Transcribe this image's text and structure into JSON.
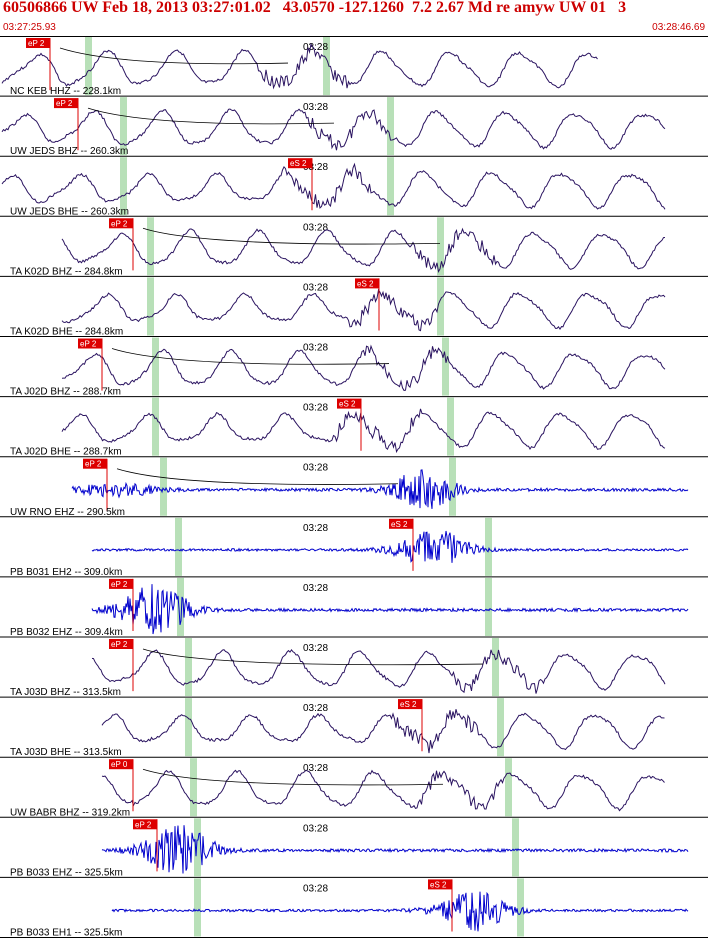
{
  "header": {
    "title": "60506866 UW Feb 18, 2013 03:27:01.02   43.0570 -127.1260  7.2 2.67 Md re amyw UW 01   3",
    "start_time": "03:27:25.93",
    "end_time": "03:28:46.69"
  },
  "minute_label": "03:28",
  "colors": {
    "header_text": "#cc0000",
    "pick_flag": "#dd0000",
    "window_band": "#b8e0b8",
    "trace_long_period": "#2a1360",
    "trace_short_period": "#0000cc",
    "divider": "#000000"
  },
  "traces": [
    {
      "label": "NC KEB HHZ -- 228.1km",
      "pick": "eP 2",
      "type": "lp",
      "seed": 1
    },
    {
      "label": "UW JEDS BHZ -- 260.3km",
      "pick": "eP 2",
      "type": "lp",
      "seed": 2
    },
    {
      "label": "UW JEDS BHE -- 260.3km",
      "pick": "eS 2",
      "type": "lp",
      "seed": 3
    },
    {
      "label": "TA K02D BHZ -- 284.8km",
      "pick": "eP 2",
      "type": "lp",
      "seed": 4
    },
    {
      "label": "TA K02D BHE -- 284.8km",
      "pick": "eS 2",
      "type": "lp",
      "seed": 5
    },
    {
      "label": "TA J02D BHZ -- 288.7km",
      "pick": "eP 2",
      "type": "lp",
      "seed": 6
    },
    {
      "label": "TA J02D BHE -- 288.7km",
      "pick": "eS 2",
      "type": "lp",
      "seed": 7
    },
    {
      "label": "UW RNO EHZ -- 290.5km",
      "pick": "eP 2",
      "type": "sp",
      "seed": 8
    },
    {
      "label": "PB B031 EH2 -- 309.0km",
      "pick": "eS 2",
      "type": "sp",
      "seed": 9
    },
    {
      "label": "PB B032 EHZ -- 309.4km",
      "pick": "eP 2",
      "type": "sp",
      "seed": 10
    },
    {
      "label": "TA J03D BHZ -- 313.5km",
      "pick": "eP 2",
      "type": "lp",
      "seed": 11
    },
    {
      "label": "TA J03D BHE -- 313.5km",
      "pick": "eS 2",
      "type": "lp",
      "seed": 12
    },
    {
      "label": "UW BABR BHZ -- 319.2km",
      "pick": "eP 0",
      "type": "lp",
      "seed": 13
    },
    {
      "label": "PB B033 EHZ -- 325.5km",
      "pick": "eP 2",
      "type": "sp",
      "seed": 14
    },
    {
      "label": "PB B033 EH1 -- 325.5km",
      "pick": "eS 2",
      "type": "sp",
      "seed": 15
    }
  ]
}
